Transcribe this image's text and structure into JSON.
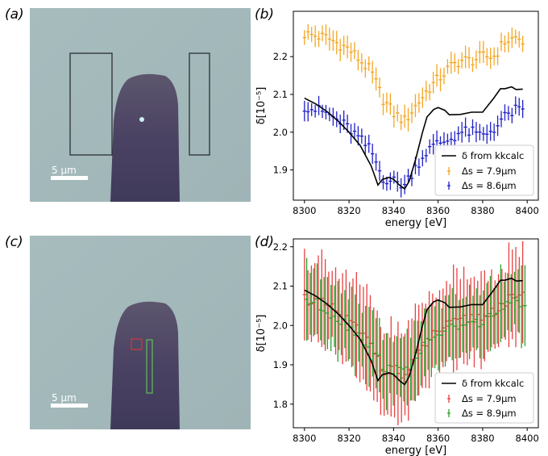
{
  "panels": {
    "a": {
      "label": "(a)",
      "scale_bar": "5 μm"
    },
    "b": {
      "label": "(b)"
    },
    "c": {
      "label": "(c)",
      "scale_bar": "5 μm"
    },
    "d": {
      "label": "(d)"
    }
  },
  "colors": {
    "image_background": "#a8bcbc",
    "sample": "#463e5c",
    "roi_outline_a": "#2b3135",
    "roi_red": "#d23a3a",
    "roi_green": "#5fbf5f",
    "beam_spot": "#cfeef0",
    "orange": "#f5a623",
    "blue": "#2020c8",
    "red": "#e84040",
    "green": "#2ca02c",
    "black": "#000000"
  },
  "chart_data": [
    {
      "id": "b",
      "type": "line",
      "xlabel": "energy [eV]",
      "ylabel": "δ[10⁻⁵]",
      "xlim": [
        8295,
        8405
      ],
      "ylim": [
        1.82,
        2.32
      ],
      "xticks": [
        8300,
        8320,
        8340,
        8360,
        8380,
        8400
      ],
      "yticks": [
        1.9,
        2.0,
        2.1,
        2.2
      ],
      "legend_position": "lower-right",
      "kkcalc": {
        "name": "δ from kkcalc",
        "x": [
          8300,
          8305,
          8310,
          8315,
          8320,
          8325,
          8330,
          8333,
          8335,
          8338,
          8340,
          8343,
          8345,
          8347,
          8350,
          8353,
          8355,
          8358,
          8360,
          8363,
          8365,
          8370,
          8375,
          8380,
          8385,
          8388,
          8390,
          8393,
          8395,
          8398
        ],
        "y": [
          2.09,
          2.075,
          2.055,
          2.03,
          2.0,
          1.965,
          1.91,
          1.86,
          1.875,
          1.88,
          1.875,
          1.858,
          1.85,
          1.87,
          1.93,
          2.0,
          2.04,
          2.06,
          2.065,
          2.058,
          2.046,
          2.047,
          2.053,
          2.053,
          2.09,
          2.115,
          2.115,
          2.12,
          2.113,
          2.114
        ]
      },
      "series": [
        {
          "name": "Δs = 7.9μm",
          "color_key": "orange",
          "x_start": 8300,
          "x_end": 8398,
          "n": 62,
          "anchors_x": [
            8300,
            8310,
            8320,
            8330,
            8335,
            8340,
            8345,
            8350,
            8355,
            8360,
            8365,
            8370,
            8375,
            8380,
            8385,
            8390,
            8395,
            8398
          ],
          "anchors_y": [
            2.26,
            2.25,
            2.22,
            2.16,
            2.09,
            2.05,
            2.03,
            2.07,
            2.11,
            2.14,
            2.17,
            2.19,
            2.19,
            2.2,
            2.2,
            2.24,
            2.25,
            2.24
          ],
          "err": 0.025
        },
        {
          "name": "Δs = 8.6μm",
          "color_key": "blue",
          "x_start": 8300,
          "x_end": 8398,
          "n": 62,
          "anchors_x": [
            8300,
            8310,
            8320,
            8330,
            8335,
            8340,
            8345,
            8350,
            8355,
            8360,
            8365,
            8370,
            8375,
            8380,
            8385,
            8390,
            8395,
            8398
          ],
          "anchors_y": [
            2.07,
            2.05,
            2.01,
            1.95,
            1.88,
            1.87,
            1.86,
            1.91,
            1.95,
            1.97,
            1.98,
            2.0,
            2.0,
            1.99,
            2.01,
            2.04,
            2.06,
            2.05
          ],
          "err": 0.022
        }
      ]
    },
    {
      "id": "d",
      "type": "line",
      "xlabel": "energy [eV]",
      "ylabel": "δ[10⁻⁵]",
      "xlim": [
        8295,
        8405
      ],
      "ylim": [
        1.74,
        2.22
      ],
      "xticks": [
        8300,
        8320,
        8340,
        8360,
        8380,
        8400
      ],
      "yticks": [
        1.8,
        1.9,
        2.0,
        2.1,
        2.2
      ],
      "legend_position": "lower-right",
      "kkcalc": {
        "name": "δ from kkcalc",
        "x": [
          8300,
          8305,
          8310,
          8315,
          8320,
          8325,
          8330,
          8333,
          8335,
          8338,
          8340,
          8343,
          8345,
          8347,
          8350,
          8353,
          8355,
          8358,
          8360,
          8363,
          8365,
          8370,
          8375,
          8380,
          8385,
          8388,
          8390,
          8393,
          8395,
          8398
        ],
        "y": [
          2.09,
          2.075,
          2.055,
          2.03,
          2.0,
          1.965,
          1.91,
          1.86,
          1.875,
          1.88,
          1.875,
          1.858,
          1.85,
          1.87,
          1.93,
          2.0,
          2.04,
          2.06,
          2.065,
          2.058,
          2.046,
          2.047,
          2.053,
          2.053,
          2.09,
          2.115,
          2.115,
          2.12,
          2.113,
          2.114
        ]
      },
      "series": [
        {
          "name": "Δs = 7.9μm",
          "color_key": "red",
          "x_start": 8300,
          "x_end": 8398,
          "n": 64,
          "anchors_x": [
            8300,
            8310,
            8320,
            8330,
            8335,
            8340,
            8345,
            8350,
            8355,
            8360,
            8365,
            8370,
            8375,
            8380,
            8385,
            8390,
            8395,
            8398
          ],
          "anchors_y": [
            2.07,
            2.05,
            2.01,
            1.95,
            1.89,
            1.88,
            1.87,
            1.92,
            1.96,
            1.99,
            2.0,
            2.01,
            2.02,
            2.02,
            2.04,
            2.06,
            2.07,
            2.07
          ],
          "err": 0.11
        },
        {
          "name": "Δs = 8.9μm",
          "color_key": "green",
          "x_start": 8301,
          "x_end": 8399,
          "n": 64,
          "anchors_x": [
            8300,
            8310,
            8320,
            8330,
            8335,
            8340,
            8345,
            8350,
            8355,
            8360,
            8365,
            8370,
            8375,
            8380,
            8385,
            8390,
            8395,
            8398
          ],
          "anchors_y": [
            2.07,
            2.04,
            2.0,
            1.95,
            1.9,
            1.89,
            1.88,
            1.92,
            1.95,
            1.98,
            1.99,
            2.0,
            2.0,
            2.01,
            2.03,
            2.05,
            2.06,
            2.06
          ],
          "err": 0.085
        }
      ]
    }
  ]
}
